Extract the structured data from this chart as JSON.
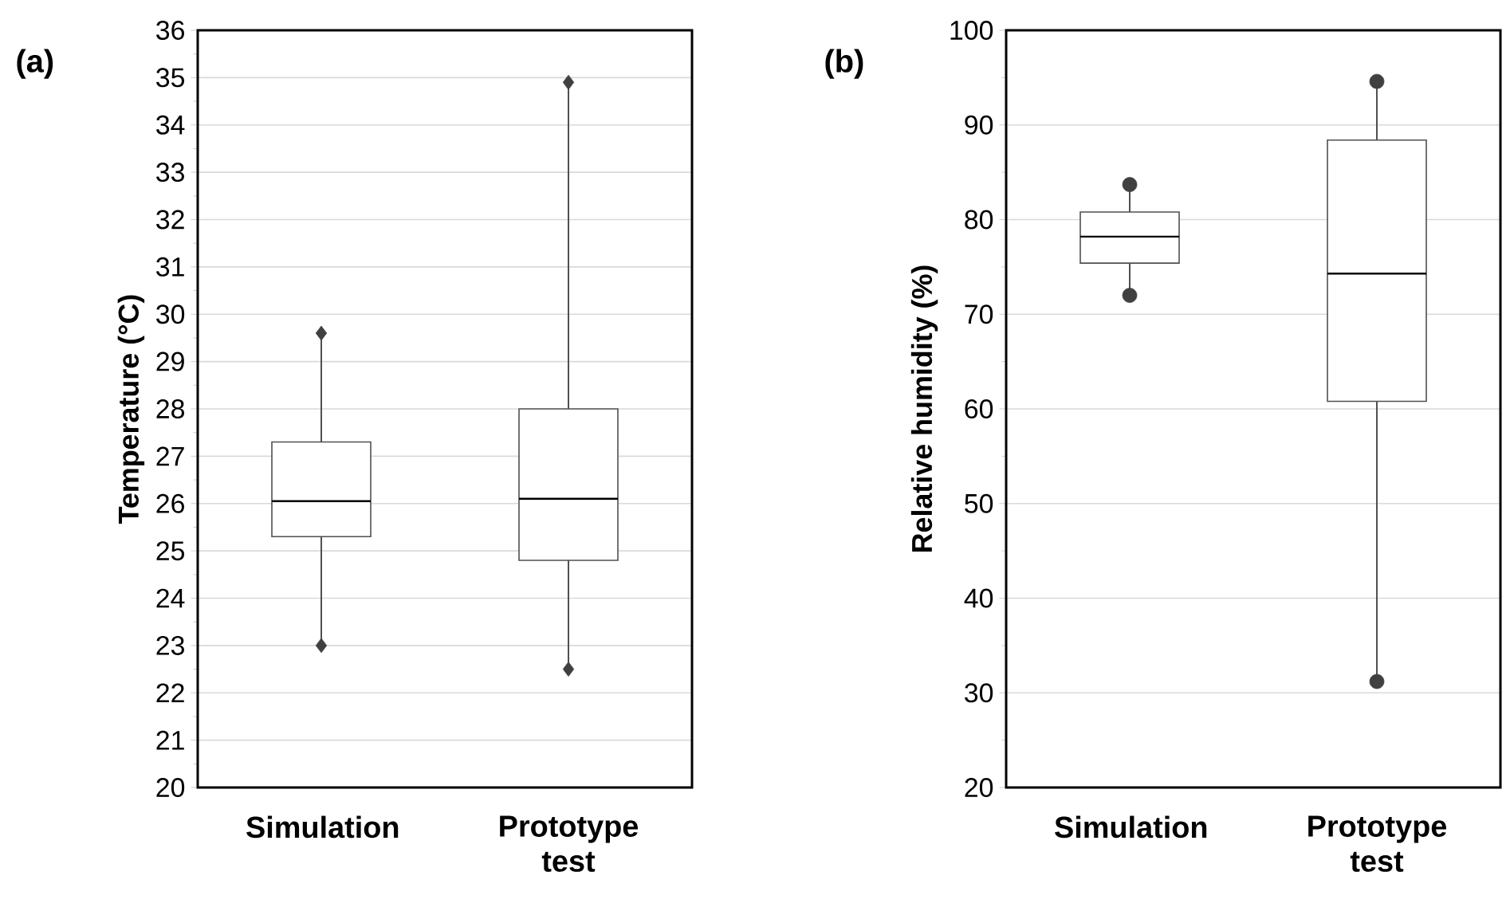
{
  "chart_data": [
    {
      "type": "box",
      "title": "(a)",
      "ylabel": "Temperature (°C)",
      "categories": [
        "Simulation",
        "Prototype test"
      ],
      "color": "#505050",
      "marker": "diamond",
      "grid": "y",
      "ylim": [
        20,
        36
      ],
      "yticks": [
        20,
        21,
        22,
        23,
        24,
        25,
        26,
        27,
        28,
        29,
        30,
        31,
        32,
        33,
        34,
        35,
        36
      ],
      "boxes": [
        {
          "low": 23.0,
          "q1": 25.3,
          "median": 26.05,
          "q3": 27.3,
          "high": 29.6
        },
        {
          "low": 22.5,
          "q1": 24.8,
          "median": 26.1,
          "q3": 28.0,
          "high": 34.9
        }
      ],
      "series": [
        {
          "type": "scatter",
          "color": "#404040",
          "x": [
            "Simulation",
            "Simulation",
            "Prototype test",
            "Prototype test"
          ],
          "values": [
            23.0,
            29.6,
            22.5,
            34.9
          ]
        }
      ]
    },
    {
      "type": "box",
      "title": "(b)",
      "ylabel": "Relative humidity (%)",
      "categories": [
        "Simulation",
        "Prototype test"
      ],
      "color": "#505050",
      "marker": "circle",
      "grid": "y",
      "ylim": [
        20,
        100
      ],
      "yticks": [
        20,
        30,
        40,
        50,
        60,
        70,
        80,
        90,
        100
      ],
      "boxes": [
        {
          "low": 72,
          "q1": 75.4,
          "median": 78.2,
          "q3": 80.8,
          "high": 83.7
        },
        {
          "low": 31.2,
          "q1": 60.8,
          "median": 74.3,
          "q3": 88.4,
          "high": 94.6
        }
      ],
      "series": [
        {
          "type": "scatter",
          "color": "#404040",
          "x": [
            "Simulation",
            "Simulation",
            "Prototype test",
            "Prototype test"
          ],
          "values": [
            72,
            83.7,
            31.2,
            94.6
          ]
        }
      ]
    }
  ]
}
